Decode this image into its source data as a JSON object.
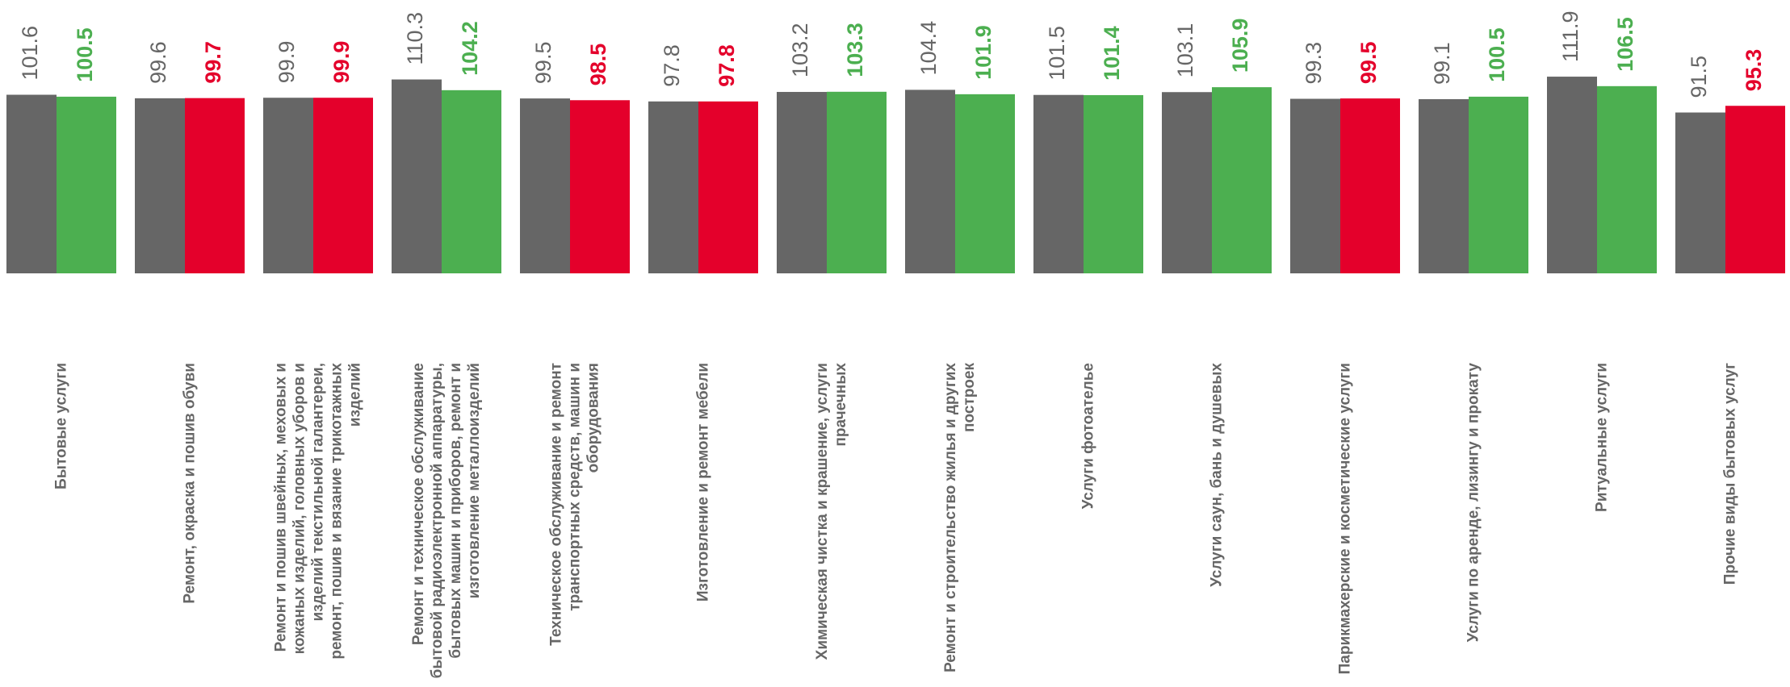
{
  "chart_data": {
    "type": "bar",
    "categories": [
      "Бытовые услуги",
      "Ремонт, окраска и пошив обуви",
      "Ремонт и пошив швейных, меховых и кожаных изделий, головных уборов и изделий текстильной галантереи, ремонт, пошив и вязание трикотажных изделий",
      "Ремонт и техническое обслуживание бытовой радиоэлектронной аппаратуры, бытовых машин и приборов, ремонт и изготовление металлоизделий",
      "Техническое обслуживание и ремонт транспортных средств, машин и оборудования",
      "Изготовление и ремонт мебели",
      "Химическая чистка и крашение, услуги прачечных",
      "Ремонт и строительство жилья и других построек",
      "Услуги фотоателье",
      "Услуги саун, бань и душевых",
      "Парикмахерские и косметические услуги",
      "Услуги по аренде, лизингу и прокату",
      "Ритуальные услуги",
      "Прочие виды бытовых услуг"
    ],
    "series": [
      {
        "color": "#666666",
        "values": [
          101.6,
          99.6,
          99.9,
          110.3,
          99.5,
          97.8,
          103.2,
          104.4,
          101.5,
          103.1,
          99.3,
          99.1,
          111.9,
          91.5
        ]
      },
      {
        "colors": [
          "#4caf50",
          "#e4002b",
          "#e4002b",
          "#4caf50",
          "#e4002b",
          "#e4002b",
          "#4caf50",
          "#4caf50",
          "#4caf50",
          "#4caf50",
          "#e4002b",
          "#4caf50",
          "#4caf50",
          "#e4002b"
        ],
        "values": [
          100.5,
          99.7,
          99.9,
          104.2,
          98.5,
          97.8,
          103.3,
          101.9,
          101.4,
          105.9,
          99.5,
          100.5,
          106.5,
          95.3
        ]
      }
    ],
    "ylim": [
      0,
      120
    ]
  }
}
